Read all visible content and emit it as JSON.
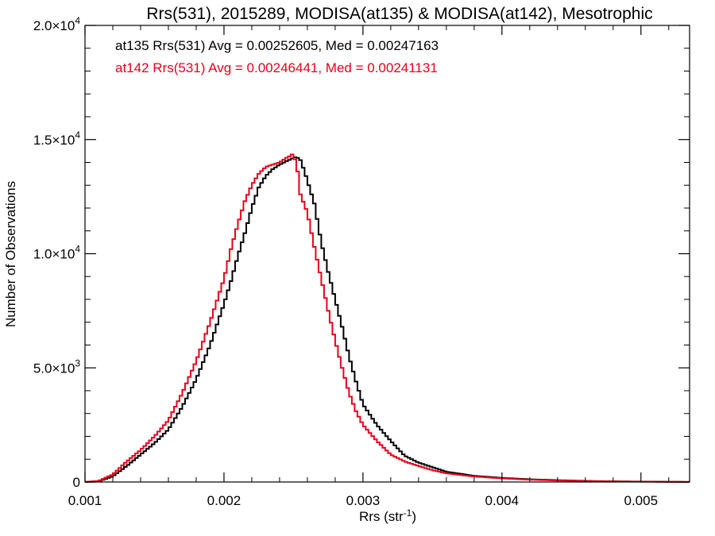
{
  "chart_data": {
    "type": "line",
    "title": "Rrs(531), 2015289, MODISA(at135) & MODISA(at142), Mesotrophic",
    "xlabel": {
      "base": "Rrs (str",
      "sup": "-1",
      "tail": ")"
    },
    "ylabel": "Number of Observations",
    "xlim": [
      0.001,
      0.00535
    ],
    "ylim": [
      0,
      20000
    ],
    "xticks": [
      {
        "value": 0.001,
        "label": "0.001"
      },
      {
        "value": 0.002,
        "label": "0.002"
      },
      {
        "value": 0.003,
        "label": "0.003"
      },
      {
        "value": 0.004,
        "label": "0.004"
      },
      {
        "value": 0.005,
        "label": "0.005"
      }
    ],
    "yticks": [
      {
        "value": 0,
        "label": "0",
        "sup": ""
      },
      {
        "value": 5000,
        "label": "5.0×10",
        "sup": "3"
      },
      {
        "value": 10000,
        "label": "1.0×10",
        "sup": "4"
      },
      {
        "value": 15000,
        "label": "1.5×10",
        "sup": "4"
      },
      {
        "value": 20000,
        "label": "2.0×10",
        "sup": "4"
      }
    ],
    "annotations": [
      {
        "text": "at135 Rrs(531) Avg = 0.00252605, Med = 0.00247163",
        "color": "#000000"
      },
      {
        "text": "at142 Rrs(531) Avg = 0.00246441, Med = 0.00241131",
        "color": "#e8001c"
      }
    ],
    "series": [
      {
        "color": "#000000",
        "x": [
          0.001,
          0.0011,
          0.0012,
          0.0013,
          0.0014,
          0.0015,
          0.0016,
          0.0017,
          0.0018,
          0.0019,
          0.002,
          0.00205,
          0.0021,
          0.00215,
          0.0022,
          0.00225,
          0.0023,
          0.00235,
          0.0024,
          0.00245,
          0.0025,
          0.00252,
          0.00255,
          0.00258,
          0.0026,
          0.00265,
          0.0027,
          0.00275,
          0.0028,
          0.00285,
          0.0029,
          0.00295,
          0.003,
          0.0031,
          0.0032,
          0.0033,
          0.0034,
          0.0035,
          0.0036,
          0.0038,
          0.004,
          0.0042,
          0.0044,
          0.0046,
          0.0048,
          0.005,
          0.0052,
          0.00535
        ],
        "y": [
          0,
          30,
          250,
          700,
          1200,
          1700,
          2300,
          3300,
          4500,
          6000,
          7800,
          8800,
          9900,
          10900,
          12000,
          12900,
          13400,
          13700,
          13900,
          14050,
          14200,
          14250,
          14100,
          13600,
          13200,
          12200,
          10500,
          9200,
          8000,
          6800,
          5500,
          4400,
          3400,
          2500,
          1800,
          1150,
          850,
          650,
          450,
          270,
          180,
          120,
          80,
          50,
          30,
          20,
          10,
          5
        ]
      },
      {
        "color": "#e8001c",
        "x": [
          0.001,
          0.0011,
          0.0012,
          0.0013,
          0.0014,
          0.0015,
          0.0016,
          0.0017,
          0.0018,
          0.0019,
          0.002,
          0.00205,
          0.0021,
          0.00215,
          0.0022,
          0.00225,
          0.0023,
          0.00235,
          0.0024,
          0.00245,
          0.00248,
          0.0025,
          0.00253,
          0.00255,
          0.0026,
          0.00265,
          0.0027,
          0.00275,
          0.0028,
          0.00285,
          0.0029,
          0.00295,
          0.003,
          0.0031,
          0.0032,
          0.0033,
          0.0034,
          0.0035,
          0.0036,
          0.0038,
          0.004,
          0.0042,
          0.0044,
          0.0046,
          0.0048,
          0.005,
          0.0052,
          0.00535
        ],
        "y": [
          0,
          50,
          330,
          900,
          1400,
          2000,
          2700,
          3900,
          5300,
          7000,
          8900,
          10200,
          11300,
          12300,
          13000,
          13500,
          13800,
          13900,
          14000,
          14200,
          14300,
          14400,
          13600,
          12600,
          11800,
          10300,
          8900,
          7500,
          6200,
          5000,
          3900,
          3100,
          2500,
          1800,
          1200,
          900,
          700,
          520,
          380,
          240,
          160,
          100,
          65,
          40,
          25,
          15,
          8,
          4
        ]
      }
    ]
  }
}
